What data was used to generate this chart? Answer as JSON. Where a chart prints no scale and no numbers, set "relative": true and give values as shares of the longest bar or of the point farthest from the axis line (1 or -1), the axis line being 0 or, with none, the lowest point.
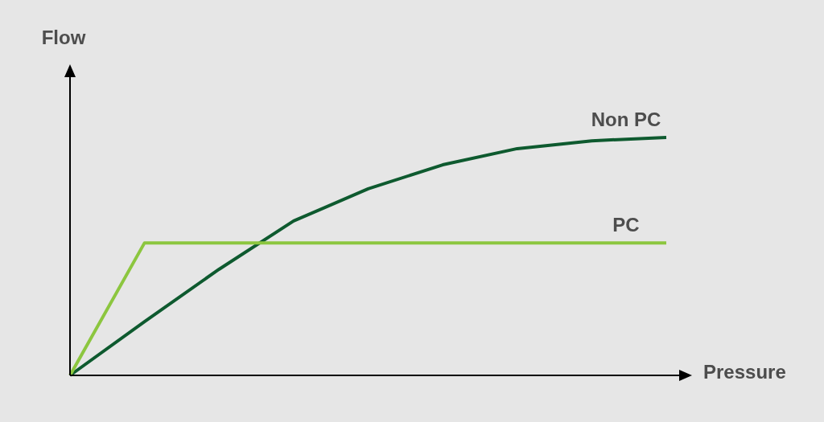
{
  "chart_data": {
    "type": "line",
    "relative": true,
    "xlabel": "Pressure",
    "ylabel": "Flow",
    "categories": [
      null,
      null,
      null,
      null,
      null,
      null,
      null,
      null,
      null
    ],
    "series": [
      {
        "name": "Non PC",
        "color": "#0e5a2f",
        "values": [
          0,
          0.226,
          0.446,
          0.649,
          0.784,
          0.885,
          0.953,
          0.986,
          1
        ]
      },
      {
        "name": "PC",
        "color": "#8cc63f",
        "values": [
          0,
          0.557,
          0.557,
          0.557,
          0.557,
          0.557,
          0.557,
          0.557,
          0.557
        ]
      }
    ]
  }
}
